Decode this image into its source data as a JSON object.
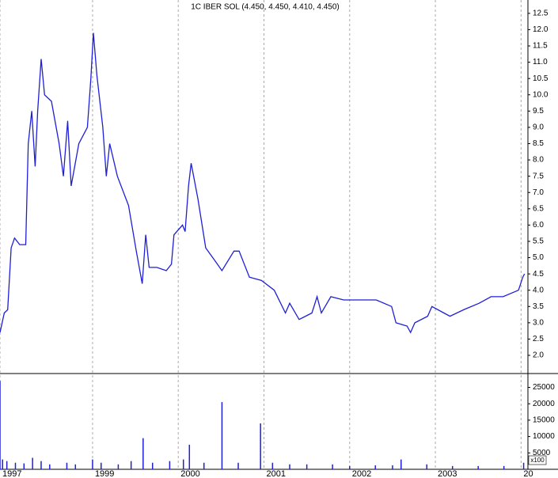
{
  "chart_data": [
    {
      "type": "line",
      "title": "1C IBER SOL (4.450, 4.450, 4.410, 4.450)",
      "x": [
        1997.92,
        1997.97,
        1998.01,
        1998.05,
        1998.09,
        1998.15,
        1998.22,
        1998.25,
        1998.29,
        1998.33,
        1998.36,
        1998.4,
        1998.44,
        1998.52,
        1998.61,
        1998.66,
        1998.71,
        1998.75,
        1998.84,
        1998.94,
        1998.98,
        1999.01,
        1999.05,
        1999.12,
        1999.16,
        1999.2,
        1999.29,
        1999.42,
        1999.51,
        1999.58,
        1999.62,
        1999.66,
        1999.75,
        1999.86,
        1999.92,
        1999.95,
        2000.05,
        2000.08,
        2000.12,
        2000.15,
        2000.23,
        2000.32,
        2000.43,
        2000.51,
        2000.65,
        2000.71,
        2000.83,
        2000.97,
        2001.12,
        2001.25,
        2001.3,
        2001.41,
        2001.56,
        2001.62,
        2001.67,
        2001.78,
        2001.93,
        2002.13,
        2002.31,
        2002.49,
        2002.54,
        2002.67,
        2002.71,
        2002.76,
        2002.91,
        2002.96,
        2003.1,
        2003.17,
        2003.33,
        2003.51,
        2003.65,
        2003.79,
        2003.97,
        2004.02,
        2004.04
      ],
      "series": [
        {
          "name": "1C IBER SOL",
          "color": "#1f1fd6",
          "values": [
            2.7,
            3.3,
            3.4,
            5.3,
            5.6,
            5.4,
            5.4,
            8.5,
            9.5,
            7.8,
            9.5,
            11.1,
            10.0,
            9.8,
            8.5,
            7.5,
            9.2,
            7.2,
            8.5,
            9.0,
            10.5,
            11.9,
            10.6,
            9.0,
            7.5,
            8.5,
            7.5,
            6.6,
            5.2,
            4.2,
            5.7,
            4.7,
            4.7,
            4.6,
            4.8,
            5.7,
            6.0,
            5.8,
            7.2,
            7.9,
            6.8,
            5.3,
            4.9,
            4.6,
            5.2,
            5.2,
            4.4,
            4.3,
            4.0,
            3.3,
            3.6,
            3.1,
            3.3,
            3.8,
            3.3,
            3.8,
            3.7,
            3.7,
            3.7,
            3.5,
            3.0,
            2.9,
            2.7,
            3.0,
            3.2,
            3.5,
            3.3,
            3.2,
            3.4,
            3.6,
            3.8,
            3.8,
            4.0,
            4.4,
            4.5
          ]
        }
      ],
      "xlim": [
        1997.92,
        2004.08
      ],
      "ylim": [
        1.49,
        12.91
      ],
      "yticks": [
        {
          "value": 2,
          "label": "2.0"
        },
        2.5,
        {
          "value": 3,
          "label": "3.0"
        },
        3.5,
        {
          "value": 4,
          "label": "4.0"
        },
        4.5,
        {
          "value": 5,
          "label": "5.0"
        },
        5.5,
        {
          "value": 6,
          "label": "6.0"
        },
        6.5,
        {
          "value": 7,
          "label": "7.0"
        },
        7.5,
        {
          "value": 8,
          "label": "8.0"
        },
        8.5,
        {
          "value": 9,
          "label": "9.0"
        },
        9.5,
        {
          "value": 10,
          "label": "10.0"
        },
        10.5,
        {
          "value": 11,
          "label": "11.0"
        },
        11.5,
        {
          "value": 12,
          "label": "12.0"
        },
        12.5
      ],
      "grid": true
    },
    {
      "type": "bar",
      "y_axis_label": "x100",
      "x": [
        1997.92,
        1997.95,
        1998.0,
        1998.1,
        1998.2,
        1998.3,
        1998.4,
        1998.5,
        1998.7,
        1998.8,
        1999.0,
        1999.1,
        1999.3,
        1999.45,
        1999.59,
        1999.7,
        1999.9,
        2000.06,
        2000.13,
        2000.3,
        2000.51,
        2000.7,
        2000.96,
        2001.1,
        2001.3,
        2001.5,
        2001.8,
        2002.0,
        2002.3,
        2002.5,
        2002.6,
        2002.9,
        2003.2,
        2003.5,
        2003.8,
        2004.03
      ],
      "values": [
        27000,
        3000,
        2500,
        2000,
        1800,
        3500,
        2500,
        1500,
        2000,
        1500,
        3000,
        2000,
        1500,
        2500,
        9500,
        2000,
        2500,
        3000,
        7500,
        2000,
        20500,
        2000,
        14000,
        2000,
        1500,
        1500,
        1500,
        1000,
        1200,
        1200,
        3000,
        1500,
        1000,
        1000,
        1000,
        2000
      ],
      "color": "#1f1fd6",
      "xlim": [
        1997.92,
        2004.08
      ],
      "xticks": [
        {
          "value": 1997.92,
          "label": "1997"
        },
        1999,
        2000,
        2001,
        2002,
        2003,
        {
          "value": 2004,
          "label": "20"
        }
      ],
      "ylim": [
        0,
        28500
      ],
      "yticks": [
        5000,
        10000,
        15000,
        20000,
        25000
      ],
      "grid": true
    }
  ]
}
